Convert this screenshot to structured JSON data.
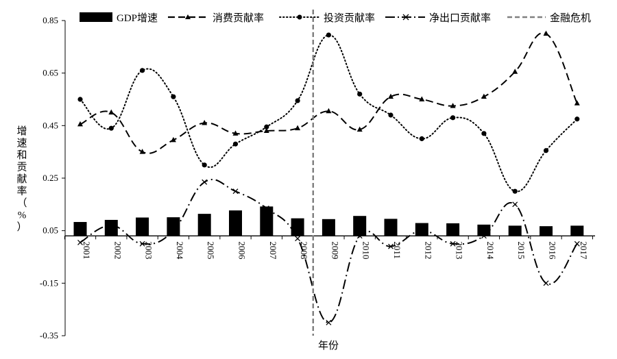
{
  "chart_data": {
    "type": "bar+line",
    "title": "",
    "xlabel": "年份",
    "ylabel": "增速和贡献率（%）",
    "ylabel_chars": [
      "增",
      "速",
      "和",
      "贡",
      "献",
      "率",
      "（",
      "%",
      "）"
    ],
    "ylim": [
      -0.35,
      0.85
    ],
    "yticks": [
      -0.35,
      -0.15,
      0.05,
      0.25,
      0.45,
      0.65,
      0.85
    ],
    "ytick_labels": [
      "-0.35",
      "-0.15",
      "0.05",
      "0.25",
      "0.45",
      "0.65",
      "0.85"
    ],
    "categories": [
      "2001",
      "2002",
      "2003",
      "2004",
      "2005",
      "2006",
      "2007",
      "2008",
      "2009",
      "2010",
      "2011",
      "2012",
      "2013",
      "2014",
      "2015",
      "2016",
      "2017"
    ],
    "legend_position": "top",
    "bar_series": {
      "name": "GDP增速",
      "color": "#000000",
      "values": [
        0.083,
        0.091,
        0.1,
        0.101,
        0.114,
        0.127,
        0.142,
        0.097,
        0.094,
        0.106,
        0.095,
        0.079,
        0.078,
        0.073,
        0.069,
        0.067,
        0.069
      ]
    },
    "line_series": [
      {
        "name": "消费贡献率",
        "style": "dashed",
        "marker": "triangle",
        "values": [
          0.455,
          0.5,
          0.35,
          0.395,
          0.46,
          0.42,
          0.43,
          0.44,
          0.505,
          0.435,
          0.56,
          0.55,
          0.525,
          0.56,
          0.655,
          0.8,
          0.535
        ]
      },
      {
        "name": "投资贡献率",
        "style": "dotted",
        "marker": "circle",
        "values": [
          0.55,
          0.44,
          0.66,
          0.56,
          0.3,
          0.38,
          0.445,
          0.545,
          0.795,
          0.57,
          0.49,
          0.4,
          0.48,
          0.42,
          0.2,
          0.355,
          0.475
        ]
      },
      {
        "name": "净出口贡献率",
        "style": "dashdot",
        "marker": "x",
        "values": [
          0.005,
          0.07,
          0.0,
          0.05,
          0.235,
          0.2,
          0.135,
          0.02,
          -0.3,
          0.03,
          -0.01,
          0.05,
          0.0,
          0.03,
          0.15,
          -0.15,
          0.0
        ]
      }
    ],
    "reference_line": {
      "name": "金融危机",
      "style": "dashed",
      "color": "#808080",
      "position_year": "2008.5"
    }
  }
}
